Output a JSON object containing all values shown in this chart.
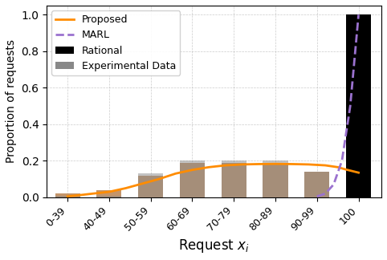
{
  "categories": [
    "0-39",
    "40-49",
    "50-59",
    "60-69",
    "70-79",
    "80-89",
    "90-99",
    "100"
  ],
  "bar_positions": [
    0,
    1,
    2,
    3,
    4,
    5,
    6,
    7
  ],
  "experimental_data": [
    0.02,
    0.04,
    0.12,
    0.19,
    0.19,
    0.19,
    0.14,
    0.13
  ],
  "experimental_grey_data": [
    0.01,
    0.01,
    0.13,
    0.2,
    0.2,
    0.2,
    0.14,
    0.14
  ],
  "rational_data": [
    0.0,
    0.0,
    0.0,
    0.0,
    0.0,
    0.0,
    0.0,
    1.0
  ],
  "proposed_x": [
    0.0,
    0.3,
    0.6,
    1.0,
    1.4,
    1.8,
    2.2,
    2.6,
    3.0,
    3.4,
    3.8,
    4.2,
    4.6,
    5.0,
    5.4,
    5.8,
    6.2,
    6.5,
    6.7,
    7.0
  ],
  "proposed_y": [
    0.005,
    0.012,
    0.02,
    0.03,
    0.05,
    0.075,
    0.1,
    0.13,
    0.15,
    0.165,
    0.175,
    0.18,
    0.182,
    0.183,
    0.182,
    0.18,
    0.175,
    0.165,
    0.152,
    0.135
  ],
  "marl_x": [
    6.0,
    6.2,
    6.4,
    6.6,
    6.8,
    7.0
  ],
  "marl_y": [
    0.005,
    0.02,
    0.07,
    0.2,
    0.5,
    1.0
  ],
  "bar_width": 0.6,
  "experimental_color": "#C4956A",
  "experimental_grey_color": "#888888",
  "rational_color": "#000000",
  "proposed_color": "#FF8C00",
  "marl_color": "#9B72CF",
  "xlabel": "Request $x_i$",
  "ylabel": "Proportion of requests",
  "ylim": [
    0,
    1.05
  ],
  "legend_fontsize": 9,
  "ylabel_fontsize": 10,
  "xlabel_fontsize": 12
}
